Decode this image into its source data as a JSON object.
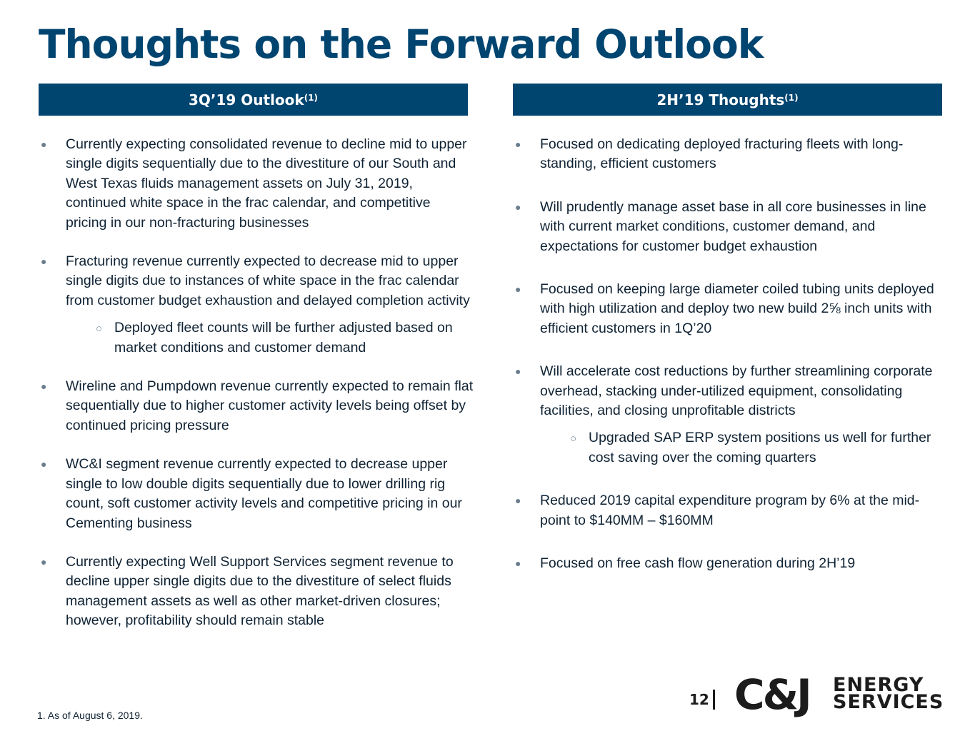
{
  "title": "Thoughts on the Forward Outlook",
  "left": {
    "header": "3Q’19 Outlook",
    "header_sup": "(1)",
    "bullets": [
      {
        "text": "Currently expecting consolidated revenue to decline mid to upper single digits sequentially due to the divestiture of our South and West Texas fluids management assets on July 31, 2019, continued white space in the frac calendar, and competitive pricing in our non-fracturing businesses"
      },
      {
        "text": "Fracturing revenue currently expected to decrease mid to upper single digits due to instances of white space in the frac calendar from customer budget exhaustion and delayed completion activity",
        "sub": "Deployed fleet counts will be further adjusted based on market conditions and customer demand"
      },
      {
        "text": "Wireline and Pumpdown revenue currently expected to remain flat sequentially due to higher customer activity levels being offset by continued pricing pressure"
      },
      {
        "text": "WC&I segment revenue currently expected to decrease upper single to low double digits sequentially due to lower drilling rig count, soft customer activity levels and competitive pricing in our Cementing business"
      },
      {
        "text": "Currently expecting Well Support Services segment revenue to decline upper single digits due to the divestiture of select fluids management assets as well as other market-driven closures; however, profitability should remain stable"
      }
    ]
  },
  "right": {
    "header": "2H’19 Thoughts",
    "header_sup": "(1)",
    "bullets": [
      {
        "text": "Focused on dedicating deployed fracturing fleets with long-standing, efficient customers"
      },
      {
        "text": "Will prudently manage asset base in all core businesses in line with current market conditions, customer demand, and expectations for customer budget exhaustion"
      },
      {
        "text": "Focused on keeping large diameter coiled tubing units deployed with high utilization and deploy two new build 2⅝ inch units with efficient customers in 1Q’20"
      },
      {
        "text": "Will accelerate cost reductions by further streamlining corporate overhead, stacking under-utilized equipment, consolidating facilities, and closing unprofitable districts",
        "sub": "Upgraded SAP ERP system positions us well for further cost saving over the coming quarters"
      },
      {
        "text": "Reduced 2019 capital expenditure program by 6% at the mid-point to $140MM – $160MM"
      },
      {
        "text": "Focused on free cash flow generation during 2H’19"
      }
    ]
  },
  "footnote": "1. As of August 6, 2019.",
  "page_number": "12",
  "logo": {
    "mark": "C&J",
    "line1": "ENERGY",
    "line2": "SERVICES"
  },
  "icons": {
    "bullet": "filled-circle",
    "sub_bullet": "hollow-circle"
  },
  "colors": {
    "brand_blue": "#004470",
    "text": "#0f2233"
  }
}
